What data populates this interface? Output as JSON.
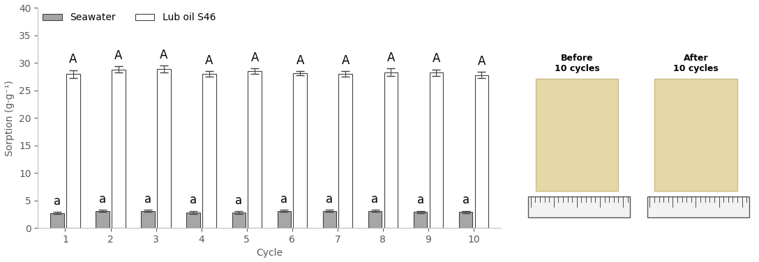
{
  "chart_data": {
    "type": "bar",
    "x_label": "Cycle",
    "y_label": "Sorption (g·g⁻¹)",
    "categories": [
      "1",
      "2",
      "3",
      "4",
      "5",
      "6",
      "7",
      "8",
      "9",
      "10"
    ],
    "series": [
      {
        "name": "Seawater",
        "color": "#a6a6a6",
        "values": [
          2.7,
          3.1,
          3.1,
          2.8,
          2.8,
          3.1,
          3.1,
          3.1,
          2.9,
          2.9
        ],
        "errors": [
          0.2,
          0.2,
          0.2,
          0.3,
          0.2,
          0.2,
          0.2,
          0.2,
          0.2,
          0.2
        ],
        "annotations": [
          "a",
          "a",
          "a",
          "a",
          "a",
          "a",
          "a",
          "a",
          "a",
          "a"
        ]
      },
      {
        "name": "Lub oil S46",
        "color": "#ffffff",
        "values": [
          28.0,
          28.8,
          28.9,
          28.0,
          28.5,
          28.1,
          28.0,
          28.3,
          28.2,
          27.8
        ],
        "errors": [
          0.7,
          0.6,
          0.6,
          0.5,
          0.5,
          0.4,
          0.5,
          0.7,
          0.6,
          0.6
        ],
        "annotations": [
          "A",
          "A",
          "A",
          "A",
          "A",
          "A",
          "A",
          "A",
          "A",
          "A"
        ]
      }
    ],
    "ylim": [
      0,
      40
    ],
    "yticks": [
      0,
      5,
      10,
      15,
      20,
      25,
      30,
      35,
      40
    ],
    "grid": false,
    "legend": "upper left"
  },
  "photos": [
    {
      "caption": "Before\n10 cycles"
    },
    {
      "caption": "After\n10 cycles"
    }
  ]
}
